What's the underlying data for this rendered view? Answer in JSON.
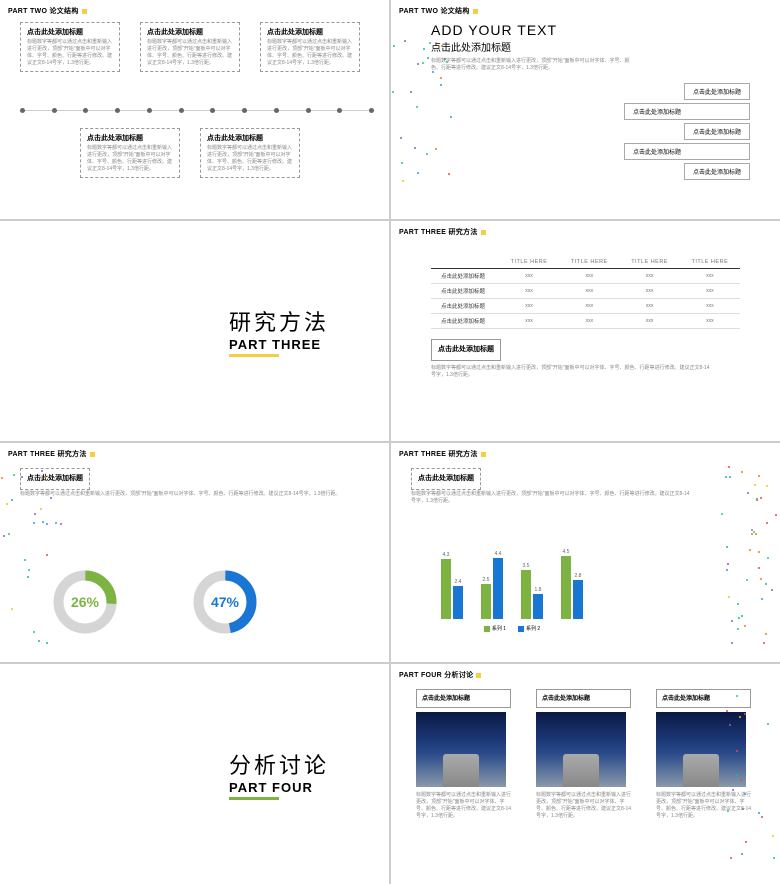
{
  "s1": {
    "hdr": "PART TWO 论文结构",
    "boxes": [
      {
        "t": "点击此处添加标题",
        "d": "标题数字等都可以通过点击和重新输入进行更改，顶部\"开始\"面板中可以对字体、字号、颜色、行距等进行修改。建议正文8-14号字，1.3倍行距。"
      },
      {
        "t": "点击此处添加标题",
        "d": "标题数字等都可以通过点击和重新输入进行更改，顶部\"开始\"面板中可以对字体、字号、颜色、行距等进行修改。建议正文8-14号字，1.3倍行距。"
      },
      {
        "t": "点击此处添加标题",
        "d": "标题数字等都可以通过点击和重新输入进行更改，顶部\"开始\"面板中可以对字体、字号、颜色、行距等进行修改。建议正文8-14号字，1.3倍行距。"
      },
      {
        "t": "点击此处添加标题",
        "d": "标题数字等都可以通过点击和重新输入进行更改，顶部\"开始\"面板中可以对字体、字号、颜色、行距等进行修改。建议正文8-14号字，1.3倍行距。"
      },
      {
        "t": "点击此处添加标题",
        "d": "标题数字等都可以通过点击和重新输入进行更改，顶部\"开始\"面板中可以对字体、字号、颜色、行距等进行修改。建议正文8-14号字，1.3倍行距。"
      }
    ],
    "dots": 12
  },
  "s2": {
    "hdr": "PART TWO 论文结构",
    "title_en": "ADD YOUR TEXT",
    "title_cn": "点击此处添加标题",
    "desc": "标题数字等都可以通过点击和重新输入进行更改，顶部\"开始\"面板中可以对字体、字号、颜色、行距等进行修改。建议正文8-14号字，1.3倍行距。",
    "items": [
      "点击此处添加标题",
      "点击此处添加标题",
      "点击此处添加标题",
      "点击此处添加标题",
      "点击此处添加标题"
    ]
  },
  "s3": {
    "cn": "研究方法",
    "en": "PART THREE",
    "accent": "#f4d03f"
  },
  "s4": {
    "hdr": "PART THREE 研究方法",
    "cols": [
      "",
      "TITLE HERE",
      "TITLE HERE",
      "TITLE HERE",
      "TITLE HERE"
    ],
    "rows": [
      [
        "点击此处添加标题",
        "xxx",
        "xxx",
        "xxx",
        "xxx"
      ],
      [
        "点击此处添加标题",
        "xxx",
        "xxx",
        "xxx",
        "xxx"
      ],
      [
        "点击此处添加标题",
        "xxx",
        "xxx",
        "xxx",
        "xxx"
      ],
      [
        "点击此处添加标题",
        "xxx",
        "xxx",
        "xxx",
        "xxx"
      ]
    ],
    "foot_t": "点击此处添加标题",
    "foot_d": "标题数字等都可以通过点击和重新输入进行更改，顶部\"开始\"面板中可以对字体、字号、颜色、行距等进行修改。建议正文8-14号字，1.3倍行距。"
  },
  "s5": {
    "hdr": "PART THREE 研究方法",
    "box_t": "点击此处添加标题",
    "box_d": "标题数字等都可以通过点击和重新输入进行更改，顶部\"开始\"面板中可以对字体、字号、颜色、行距等进行修改。建议正文8-14号字，1.3倍行距。",
    "d1": {
      "v": 26,
      "label": "26%",
      "color": "#7cb342",
      "bg": "#d5d5d5"
    },
    "d2": {
      "v": 47,
      "label": "47%",
      "color": "#1976d2",
      "bg": "#d5d5d5"
    }
  },
  "s6": {
    "hdr": "PART THREE 研究方法",
    "box_t": "点击此处添加标题",
    "box_d": "标题数字等都可以通过点击和重新输入进行更改，顶部\"开始\"面板中可以对字体、字号、颜色、行距等进行修改。建议正文8-14号字，1.3倍行距。",
    "series": [
      {
        "name": "系列 1",
        "color": "#7cb342"
      },
      {
        "name": "系列 2",
        "color": "#1976d2"
      }
    ],
    "groups": [
      {
        "a": 4.3,
        "b": 2.4
      },
      {
        "a": 2.5,
        "b": 4.4
      },
      {
        "a": 3.5,
        "b": 1.8
      },
      {
        "a": 4.5,
        "b": 2.8
      }
    ],
    "ymax": 5
  },
  "s7": {
    "cn": "分析讨论",
    "en": "PART FOUR",
    "accent": "#7cb342"
  },
  "s8": {
    "hdr": "PART FOUR 分析讨论",
    "cols": [
      {
        "t": "点击此处添加标题",
        "d": "标题数字等都可以通过点击和重新输入进行更改，顶部\"开始\"面板中可以对字体、字号、颜色、行距等进行修改。建议正文8-14号字，1.3倍行距。"
      },
      {
        "t": "点击此处添加标题",
        "d": "标题数字等都可以通过点击和重新输入进行更改，顶部\"开始\"面板中可以对字体、字号、颜色、行距等进行修改。建议正文8-14号字，1.3倍行距。"
      },
      {
        "t": "点击此处添加标题",
        "d": "标题数字等都可以通过点击和重新输入进行更改，顶部\"开始\"面板中可以对字体、字号、颜色、行距等进行修改。建议正文8-14号字，1.3倍行距。"
      }
    ]
  },
  "confetti_colors": [
    "#e74c3c",
    "#3498db",
    "#f1c40f",
    "#2ecc71",
    "#9b59b6",
    "#e67e22",
    "#1abc9c"
  ]
}
